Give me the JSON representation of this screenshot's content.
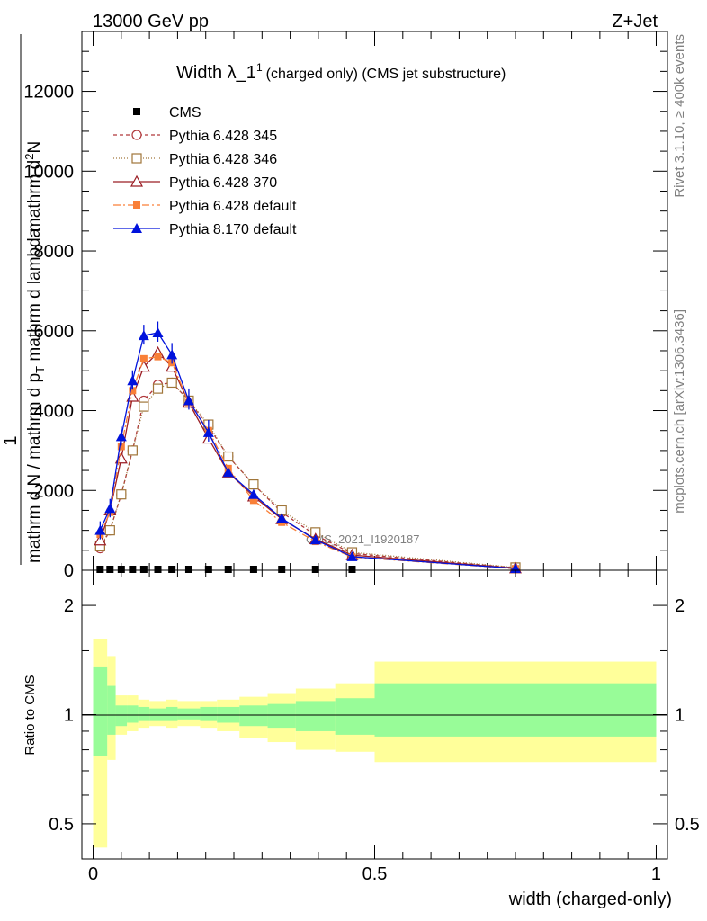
{
  "header": {
    "energy_label": "13000 GeV pp",
    "process_label": "Z+Jet"
  },
  "side": {
    "rivet_label": "Rivet 3.1.10, ≥ 400k events",
    "mcplots_label": "mcplots.cern.ch [arXiv:1306.3436]"
  },
  "colors": {
    "cms": "#000000",
    "p345": "#b0383b",
    "p346": "#a0763a",
    "p370": "#9b1d24",
    "p6def": "#f97f37",
    "p8def": "#0012dc",
    "band_outer": "#ffff9a",
    "band_inner": "#98fc98"
  },
  "chart_data": [
    {
      "type": "line",
      "title_main": "Width λ_1",
      "title_sup": "1",
      "title_rest": "(charged only) (CMS jet substructure)",
      "ylabel_parts": [
        "1",
        "mathrm d N / mathrm d p",
        "T",
        " mathrm d lambda",
        "mathrm d",
        "2",
        "N"
      ],
      "watermark": "CMS_2021_I1920187",
      "xlim": [
        -0.02,
        1.02
      ],
      "ylim": [
        0,
        13500
      ],
      "yticks": [
        0,
        2000,
        4000,
        6000,
        8000,
        10000,
        12000
      ],
      "ytick_labels": [
        "0",
        "2000",
        "4000",
        "6000",
        "8000",
        "10000",
        "12000"
      ],
      "x": [
        0.0125,
        0.03,
        0.05,
        0.07,
        0.09,
        0.115,
        0.14,
        0.17,
        0.205,
        0.24,
        0.285,
        0.335,
        0.395,
        0.46,
        0.75
      ],
      "series": [
        {
          "name": "CMS",
          "marker": "square",
          "color": "#000000",
          "y": [
            0,
            0,
            0,
            0,
            0,
            0,
            0,
            0,
            0,
            0,
            0,
            0,
            0,
            0,
            0
          ]
        },
        {
          "name": "Pythia 6.428 345",
          "marker": "circle-open",
          "dash": "4,3",
          "color": "#b0383b",
          "y": [
            550,
            1000,
            1900,
            3000,
            4250,
            4650,
            4700,
            4250,
            3600,
            2850,
            2150,
            1450,
            880,
            420,
            60
          ]
        },
        {
          "name": "Pythia 6.428 346",
          "marker": "square-open",
          "dash": "1,2",
          "color": "#a0763a",
          "y": [
            600,
            1000,
            1900,
            3000,
            4100,
            4550,
            4700,
            4250,
            3650,
            2850,
            2150,
            1500,
            950,
            450,
            70
          ]
        },
        {
          "name": "Pythia 6.428 370",
          "marker": "triangle-open",
          "dash": "",
          "color": "#9b1d24",
          "y": [
            750,
            1500,
            2800,
            4350,
            5100,
            5450,
            5100,
            4200,
            3300,
            2450,
            1850,
            1280,
            780,
            380,
            50
          ]
        },
        {
          "name": "Pythia 6.428 default",
          "marker": "square-filled",
          "dash": "8,3,2,3",
          "color": "#f97f37",
          "y": [
            900,
            1450,
            3100,
            4500,
            5300,
            5350,
            5200,
            4200,
            3500,
            2550,
            1750,
            1200,
            720,
            330,
            40
          ]
        },
        {
          "name": "Pythia 8.170 default",
          "marker": "triangle-filled",
          "dash": "",
          "color": "#0012dc",
          "y": [
            1000,
            1550,
            3350,
            4750,
            5880,
            5950,
            5400,
            4250,
            3450,
            2450,
            1900,
            1300,
            760,
            340,
            45
          ]
        }
      ]
    },
    {
      "type": "area",
      "ylabel": "Ratio to CMS",
      "xlabel": "width (charged-only)",
      "xticks": [
        0,
        0.5,
        1
      ],
      "xtick_labels": [
        "0",
        "0.5",
        "1"
      ],
      "yticks": [
        0.5,
        1,
        2
      ],
      "ytick_labels": [
        "0.5",
        "1",
        "2"
      ],
      "ylim_log": [
        0.4,
        2.5
      ],
      "bin_edges": [
        0.0,
        0.025,
        0.04,
        0.06,
        0.08,
        0.1,
        0.13,
        0.15,
        0.19,
        0.22,
        0.26,
        0.31,
        0.36,
        0.43,
        0.5,
        1.0
      ],
      "bands": [
        {
          "name": "outer",
          "lo": [
            0.43,
            0.75,
            0.88,
            0.9,
            0.92,
            0.93,
            0.92,
            0.93,
            0.92,
            0.9,
            0.86,
            0.84,
            0.8,
            0.79,
            0.74
          ],
          "hi": [
            1.62,
            1.45,
            1.13,
            1.13,
            1.1,
            1.09,
            1.1,
            1.09,
            1.09,
            1.1,
            1.12,
            1.14,
            1.18,
            1.22,
            1.4
          ]
        },
        {
          "name": "inner",
          "lo": [
            0.77,
            0.88,
            0.93,
            0.95,
            0.96,
            0.96,
            0.96,
            0.97,
            0.96,
            0.95,
            0.93,
            0.92,
            0.9,
            0.88,
            0.87
          ],
          "hi": [
            1.35,
            1.2,
            1.06,
            1.06,
            1.05,
            1.04,
            1.05,
            1.04,
            1.05,
            1.05,
            1.06,
            1.07,
            1.09,
            1.11,
            1.22
          ]
        }
      ]
    }
  ]
}
